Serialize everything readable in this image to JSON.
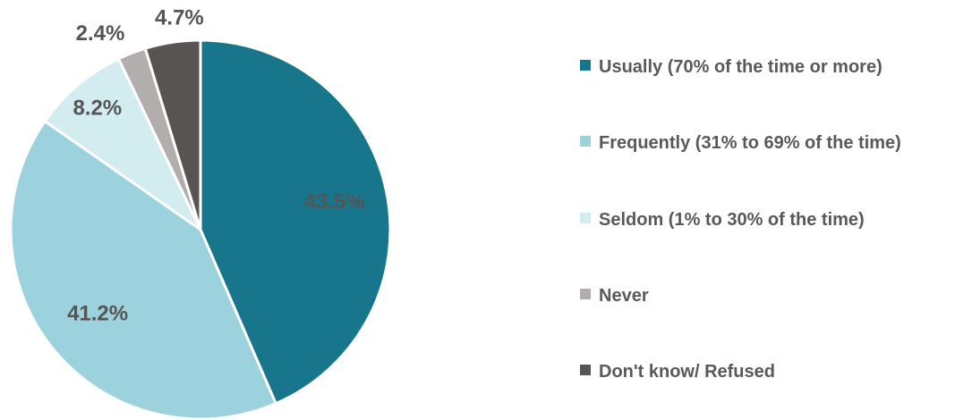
{
  "chart_data": {
    "type": "pie",
    "slices": [
      {
        "label": "Usually (70% of the time or more)",
        "value": 43.5,
        "display": "43.5%",
        "color": "#17758c"
      },
      {
        "label": "Frequently (31% to 69% of the time)",
        "value": 41.2,
        "display": "41.2%",
        "color": "#9bd2de"
      },
      {
        "label": "Seldom (1% to 30% of the time)",
        "value": 8.2,
        "display": "8.2%",
        "color": "#d3ecf0"
      },
      {
        "label": "Never",
        "value": 2.4,
        "display": "2.4%",
        "color": "#b2aeae"
      },
      {
        "label": "Don't know/ Refused",
        "value": 4.7,
        "display": "4.7%",
        "color": "#585453"
      }
    ],
    "data_label_colors": [
      "#555555",
      "#555555",
      "#555555",
      "#555555",
      "#555555"
    ],
    "start_angle": "12 o'clock, clockwise",
    "legend_position": "right"
  }
}
